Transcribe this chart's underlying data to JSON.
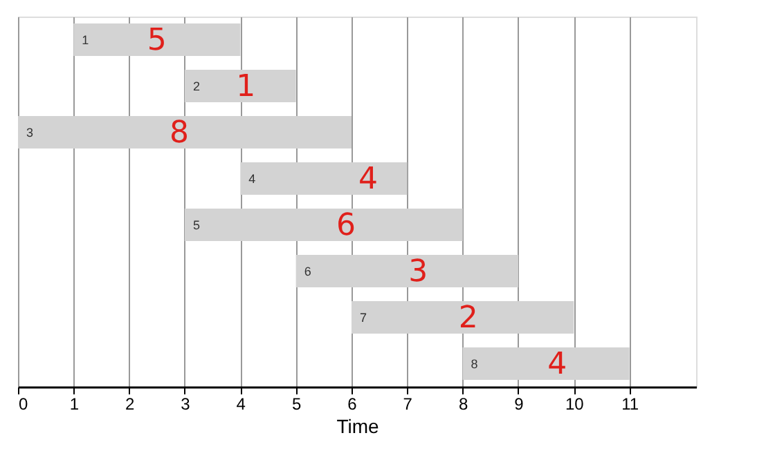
{
  "chart_data": {
    "type": "bar",
    "orientation": "horizontal",
    "xlabel": "Time",
    "categories": [
      "1",
      "2",
      "3",
      "4",
      "5",
      "6",
      "7",
      "8"
    ],
    "base": [
      1,
      3,
      0,
      4,
      3,
      5,
      6,
      8
    ],
    "values": [
      3,
      2,
      6,
      3,
      5,
      4,
      4,
      3
    ],
    "color": "#d3d3d3",
    "xlim": [
      0,
      12.2
    ],
    "xticks": [
      0,
      1,
      2,
      3,
      4,
      5,
      6,
      7,
      8,
      9,
      10,
      11
    ],
    "grid": "x",
    "tick_labels": "x",
    "annotations": [
      {
        "text": "5",
        "x": 2.5,
        "y": "1"
      },
      {
        "text": "1",
        "x": 4.1,
        "y": "2"
      },
      {
        "text": "8",
        "x": 2.9,
        "y": "3"
      },
      {
        "text": "4",
        "x": 6.3,
        "y": "4"
      },
      {
        "text": "6",
        "x": 5.9,
        "y": "5"
      },
      {
        "text": "3",
        "x": 7.2,
        "y": "6"
      },
      {
        "text": "2",
        "x": 8.1,
        "y": "7"
      },
      {
        "text": "4",
        "x": 9.7,
        "y": "8"
      }
    ]
  }
}
